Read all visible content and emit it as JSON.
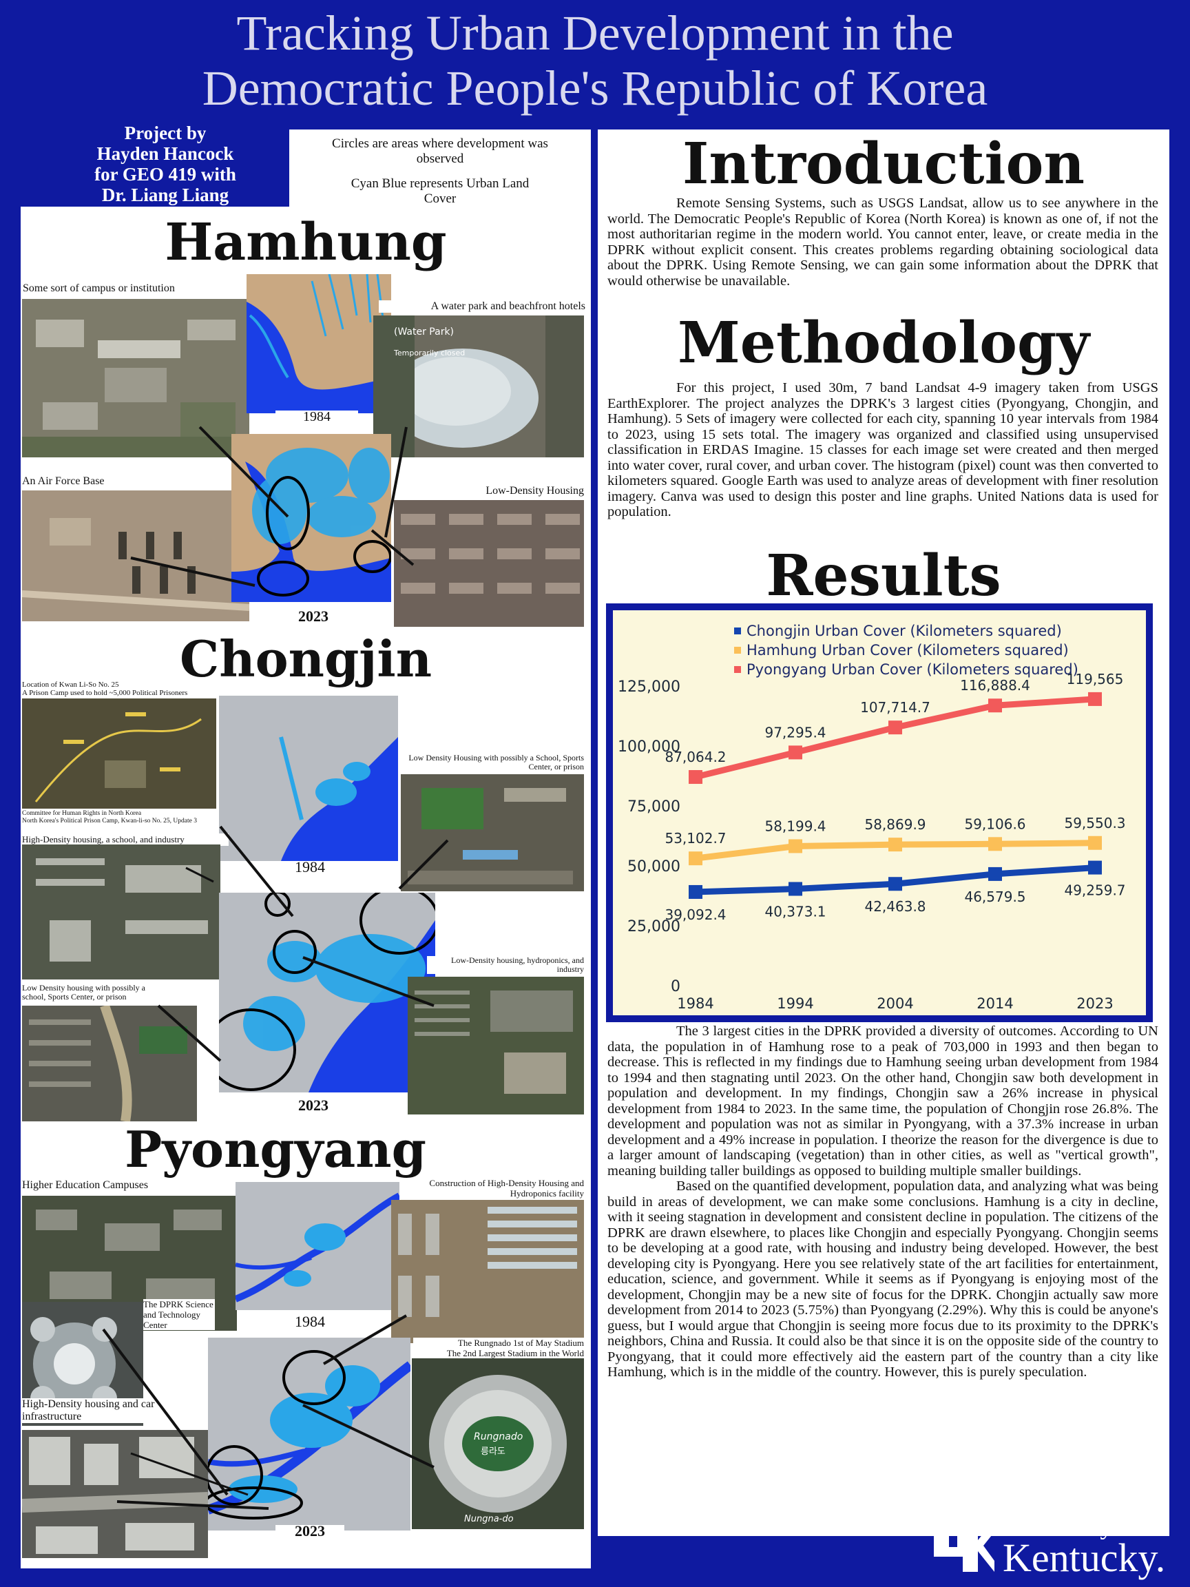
{
  "poster": {
    "title_line1": "Tracking Urban Development in the",
    "title_line2": "Democratic People's Republic of Korea",
    "credit_lines": [
      "Project by",
      "Hayden Hancock",
      "for GEO 419 with",
      "Dr. Liang Liang"
    ]
  },
  "legend_notes": {
    "line1": "Circles are areas where development was observed",
    "line2": "Cyan Blue represents Urban Land Cover"
  },
  "hamhung": {
    "name": "Hamhung",
    "captions": {
      "campus": "Some sort of campus or institution",
      "waterpark": "A water park and beachfront hotels",
      "waterpark_tag": "(Water Park)",
      "waterpark_closed": "Temporarily closed",
      "airforce": "An Air Force Base",
      "housing": "Low-Density Housing"
    },
    "year_a": "1984",
    "year_b": "2023"
  },
  "chongjin": {
    "name": "Chongjin",
    "captions": {
      "prison_1": "Location of Kwan Li-So No. 25",
      "prison_2": "A Prison Camp used to hold ~5,000 Political Prisoners",
      "prison_src_1": "Committee for Human Rights in North Korea",
      "prison_src_2": "North Korea's Political Prison Camp, Kwan-li-so No. 25, Update 3",
      "school_right": "Low Density Housing with possibly a School, Sports Center, or prison",
      "hd_housing": "High-Density housing, a school, and industry",
      "hydroponics": "Low-Density housing, hydroponics, and industry",
      "school_left": "Low Density housing with possibly a school, Sports Center, or prison"
    },
    "year_a": "1984",
    "year_b": "2023"
  },
  "pyongyang": {
    "name": "Pyongyang",
    "captions": {
      "campuses": "Higher Education Campuses",
      "construction": "Construction of High-Density Housing and Hydroponics facility",
      "science": "The DPRK Science and Technology Center",
      "stadium_1": "The Rungnado 1st of May Stadium",
      "stadium_2": "The 2nd Largest Stadium in the World",
      "car_infra": "High-Density housing and car infrastructure",
      "stadium_label": "Rungnado",
      "stadium_label_kr": "릉라도",
      "island_label": "Nungna-do"
    },
    "year_a": "1984",
    "year_b": "2023"
  },
  "introduction": {
    "heading": "Introduction",
    "body": "Remote Sensing Systems, such as USGS Landsat, allow us to see anywhere in the world. The Democratic People's Republic of Korea (North Korea) is known as one of, if not the most authoritarian regime in the modern world. You cannot enter, leave, or create media in the DPRK without explicit consent. This creates problems  regarding obtaining sociological data about the DPRK. Using Remote Sensing, we can gain some information about the DPRK that would otherwise be unavailable."
  },
  "methodology": {
    "heading": "Methodology",
    "body": "For this project, I used  30m, 7 band Landsat 4-9 imagery taken from USGS EarthExplorer.  The project analyzes the DPRK's 3 largest cities (Pyongyang, Chongjin, and Hamhung). 5 Sets of imagery were collected for each city, spanning 10 year intervals from 1984 to 2023, using 15 sets total. The imagery was organized and classified using unsupervised classification in ERDAS Imagine. 15 classes for each image set were created and then merged into water cover, rural cover, and urban cover. The histogram (pixel) count was then converted to kilometers squared. Google Earth was used to analyze areas of development with finer resolution imagery. Canva was used to design this poster and line graphs. United Nations data is used for population."
  },
  "results": {
    "heading": "Results",
    "para1": "The 3 largest cities in the DPRK provided a diversity of outcomes. According to UN data, the population in of Hamhung rose to a peak of 703,000 in 1993 and then began to decrease. This is reflected in my findings due to Hamhung seeing urban development from 1984 to 1994 and then stagnating until 2023. On the other hand, Chongjin saw both development in population and development. In my findings, Chongjin saw a 26% increase in physical development from 1984 to 2023. In the same time, the population of Chongjin rose 26.8%. The development and population was not as similar in Pyongyang, with a 37.3% increase in urban development and a 49% increase in population. I theorize the reason for the divergence is due to a larger amount of landscaping (vegetation) than in other cities, as well as \"vertical growth\", meaning building taller buildings as opposed to building multiple smaller buildings.",
    "para2": "Based on the quantified development, population data, and analyzing what was being build in areas of development, we can make some conclusions. Hamhung is a city in decline, with it seeing stagnation in development and consistent decline in population. The citizens of the DPRK are drawn elsewhere, to places like Chongjin and especially Pyongyang. Chongjin seems to be developing at a good rate, with housing and industry being developed. However, the best developing city is Pyongyang. Here you see relatively state of the art facilities for entertainment, education, science, and government. While it seems as if Pyongyang is enjoying most of the development, Chongjin may be a new site of focus for the DPRK. Chongjin actually saw more development from 2014 to 2023 (5.75%) than Pyongyang (2.29%). Why this is could be anyone's guess, but I would argue that Chongjin is seeing more focus due to its proximity to the DPRK's neighbors, China and Russia. It could also be that since it is on the opposite side of the country to Pyongyang, that it could more effectively aid the eastern part of the country than a city like Hamhung, which is in the middle of the country. However, this is purely speculation."
  },
  "chart_data": {
    "type": "line",
    "x": [
      "1984",
      "1994",
      "2004",
      "2014",
      "2023"
    ],
    "ylim": [
      0,
      125000
    ],
    "yticks": [
      0,
      25000,
      50000,
      75000,
      100000,
      125000
    ],
    "ytick_labels": [
      "0",
      "25,000",
      "50,000",
      "75,000",
      "100,000",
      "125,000"
    ],
    "legend_position": "top-left",
    "grid": false,
    "series": [
      {
        "name": "Chongjin Urban Cover (Kilometers squared)",
        "color": "#1445b0",
        "values": [
          39092.4,
          40373.1,
          42463.8,
          46579.5,
          49259.7
        ],
        "labels": [
          "39,092.4",
          "40,373.1",
          "42,463.8",
          "46,579.5",
          "49,259.7"
        ]
      },
      {
        "name": "Hamhung Urban Cover (Kilometers squared)",
        "color": "#fbbf57",
        "values": [
          53102.7,
          58199.4,
          58869.9,
          59106.6,
          59550.3
        ],
        "labels": [
          "53,102.7",
          "58,199.4",
          "58,869.9",
          "59,106.6",
          "59,550.3"
        ]
      },
      {
        "name": "Pyongyang Urban Cover (Kilometers squared)",
        "color": "#f25a5a",
        "values": [
          87064.2,
          97295.4,
          107714.7,
          116888.4,
          119565
        ],
        "labels": [
          "87,064.2",
          "97,295.4",
          "107,714.7",
          "116,888.4",
          "119,565"
        ]
      }
    ]
  },
  "logo": {
    "monogram": "UK",
    "line1": "University of",
    "line2": "Kentucky."
  }
}
